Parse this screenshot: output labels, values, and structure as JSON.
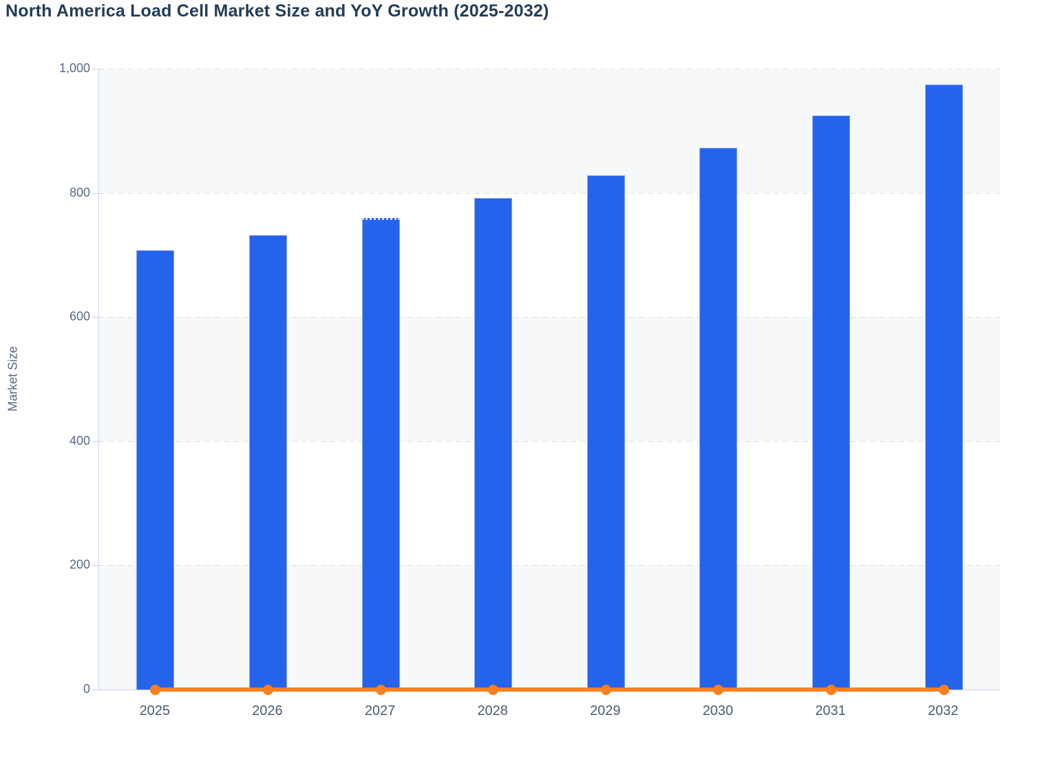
{
  "title": "North America Load Cell Market Size and YoY Growth (2025-2032)",
  "chart_data": {
    "type": "bar",
    "title": "North America Load Cell Market Size and YoY Growth (2025-2032)",
    "categories": [
      "2025",
      "2026",
      "2027",
      "2028",
      "2029",
      "2030",
      "2031",
      "2032"
    ],
    "series": [
      {
        "name": "Market Size",
        "type": "bar",
        "color": "#2563eb",
        "values": [
          708,
          732,
          760,
          792,
          828,
          873,
          925,
          975
        ]
      },
      {
        "name": "YoY Growth",
        "type": "line",
        "color": "#f8801f",
        "values": [
          0,
          0,
          0,
          0,
          0,
          0,
          0,
          0
        ]
      }
    ],
    "xlabel": "",
    "ylabel": "Market Size",
    "ylim": [
      0,
      1000
    ],
    "ytick_interval": 200,
    "ytick_labels": [
      "0",
      "200",
      "400",
      "600",
      "800",
      "1,000"
    ],
    "grid": "horizontal dashed gridlines at each y tick",
    "split_area": "alternating horizontal bands between y ticks, light band at top (1000-800)",
    "legend": "none",
    "dotted_top_category_index": 2
  },
  "colors": {
    "bar": "#2563eb",
    "line": "#f8801f",
    "title_text": "#233c5a",
    "y_tick_text": "#5a6a82",
    "x_tick_text": "#4c5c72",
    "axis_line": "#c8d2e8",
    "gridline": "#dcdfe7",
    "band": "#f7f8fa",
    "background": "#ffffff"
  }
}
